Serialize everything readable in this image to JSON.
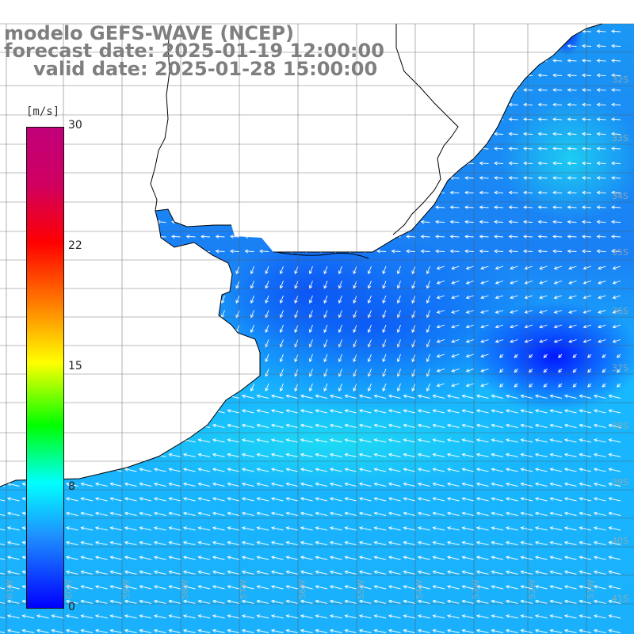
{
  "title": {
    "line1": "modelo GEFS-WAVE (NCEP)",
    "line2": "forecast date: 2025-01-19 12:00:00",
    "line3": "valid date: 2025-01-28 15:00:00"
  },
  "colorbar": {
    "unit": "[m/s]",
    "ticks": [
      "30",
      "22",
      "15",
      "8",
      "0"
    ],
    "tick_values": [
      30,
      22,
      15,
      8,
      0
    ],
    "min": 0,
    "max": 30,
    "colors": [
      "#0000ff",
      "#1e90ff",
      "#00ffff",
      "#00ff00",
      "#ffff00",
      "#ff8000",
      "#ff0000",
      "#c0007a"
    ]
  },
  "map": {
    "lat_labels": [
      "32S",
      "33S",
      "34S",
      "35S",
      "36S",
      "37S",
      "38S",
      "39S",
      "40S",
      "41S"
    ],
    "lon_labels": [
      "61W",
      "60W",
      "59W",
      "58W",
      "57W",
      "56W",
      "55W",
      "54W",
      "53W",
      "52W",
      "51W"
    ],
    "land_color": "#ffffff",
    "ocean_low_color": "#0a3cf0",
    "ocean_high_color": "#18b8ff",
    "grid_color": "#555555",
    "coast_color": "#000000",
    "arrow_color": "#ffffff"
  }
}
